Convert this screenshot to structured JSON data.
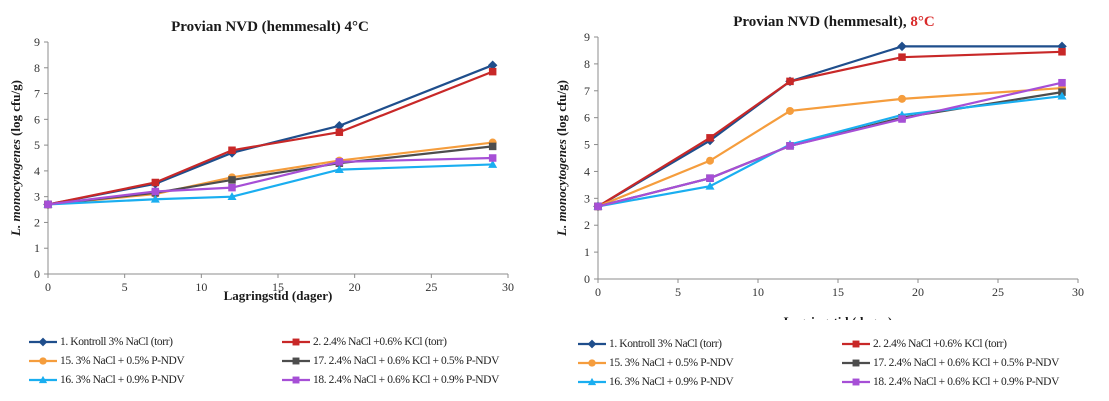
{
  "series_styles": [
    {
      "color": "#1f4e8c",
      "marker": "diamond"
    },
    {
      "color": "#c82828",
      "marker": "square"
    },
    {
      "color": "#f59d3d",
      "marker": "circle"
    },
    {
      "color": "#4d4d4d",
      "marker": "square"
    },
    {
      "color": "#1aaef0",
      "marker": "triangle"
    },
    {
      "color": "#a64fd6",
      "marker": "square"
    }
  ],
  "chart_data": [
    {
      "type": "line",
      "title": {
        "main": "Provian NVD (hemmesalt) 4°C",
        "highlight": "",
        "highlight_color": "#d92b2b"
      },
      "xlabel": "Lagringstid (dager)",
      "ylabel_italic": "L. monocytogenes",
      "ylabel_rest": " (log cfu/g)",
      "xlim": [
        0,
        30
      ],
      "ylim": [
        0,
        9
      ],
      "xticks": [
        "0",
        "5",
        "10",
        "15",
        "20",
        "25",
        "30"
      ],
      "yticks": [
        "0",
        "1",
        "2",
        "3",
        "4",
        "5",
        "6",
        "7",
        "8",
        "9"
      ],
      "grid": "none",
      "legend_position": "bottom",
      "x": [
        0,
        7,
        12,
        19,
        29
      ],
      "series": [
        {
          "name": "1. Kontroll 3% NaCl (torr)",
          "values": [
            2.7,
            3.5,
            4.7,
            5.75,
            8.1
          ]
        },
        {
          "name": "2. 2.4% NaCl +0.6% KCl (torr)",
          "values": [
            2.7,
            3.55,
            4.8,
            5.5,
            7.85
          ]
        },
        {
          "name": "15. 3% NaCl + 0.5% P-NDV",
          "values": [
            2.7,
            3.1,
            3.75,
            4.4,
            5.1
          ]
        },
        {
          "name": "17. 2.4% NaCl + 0.6% KCl + 0.5% P-NDV",
          "values": [
            2.7,
            3.15,
            3.65,
            4.3,
            4.95
          ]
        },
        {
          "name": "16. 3% NaCl + 0.9% P-NDV",
          "values": [
            2.7,
            2.9,
            3.0,
            4.05,
            4.25
          ]
        },
        {
          "name": "18. 2.4% NaCl + 0.6% KCl + 0.9% P-NDV",
          "values": [
            2.7,
            3.2,
            3.35,
            4.35,
            4.5
          ]
        }
      ]
    },
    {
      "type": "line",
      "title": {
        "main": "Provian NVD (hemmesalt), ",
        "highlight": "8°C",
        "highlight_color": "#d92b2b"
      },
      "xlabel": "Lagringstid (dager)",
      "ylabel_italic": "L. monocytogenes",
      "ylabel_rest": " (log cfu/g)",
      "xlim": [
        0,
        30
      ],
      "ylim": [
        0,
        9
      ],
      "xticks": [
        "0",
        "5",
        "10",
        "15",
        "20",
        "25",
        "30"
      ],
      "yticks": [
        "0",
        "1",
        "2",
        "3",
        "4",
        "5",
        "6",
        "7",
        "8",
        "9"
      ],
      "grid": "none",
      "legend_position": "bottom",
      "x": [
        0,
        7,
        12,
        19,
        29
      ],
      "series": [
        {
          "name": "1. Kontroll 3% NaCl (torr)",
          "values": [
            2.7,
            5.15,
            7.35,
            8.65,
            8.65
          ]
        },
        {
          "name": "2. 2.4% NaCl +0.6% KCl (torr)",
          "values": [
            2.7,
            5.25,
            7.35,
            8.25,
            8.45
          ]
        },
        {
          "name": "15. 3% NaCl + 0.5% P-NDV",
          "values": [
            2.7,
            4.4,
            6.25,
            6.7,
            7.1
          ]
        },
        {
          "name": "17. 2.4% NaCl + 0.6% KCl + 0.5% P-NDV",
          "values": [
            2.7,
            3.75,
            4.95,
            6.0,
            6.95
          ]
        },
        {
          "name": "16. 3% NaCl + 0.9% P-NDV",
          "values": [
            2.7,
            3.45,
            5.0,
            6.1,
            6.8
          ]
        },
        {
          "name": "18. 2.4% NaCl + 0.6% KCl + 0.9% P-NDV",
          "values": [
            2.7,
            3.75,
            4.95,
            5.95,
            7.3
          ]
        }
      ]
    }
  ]
}
